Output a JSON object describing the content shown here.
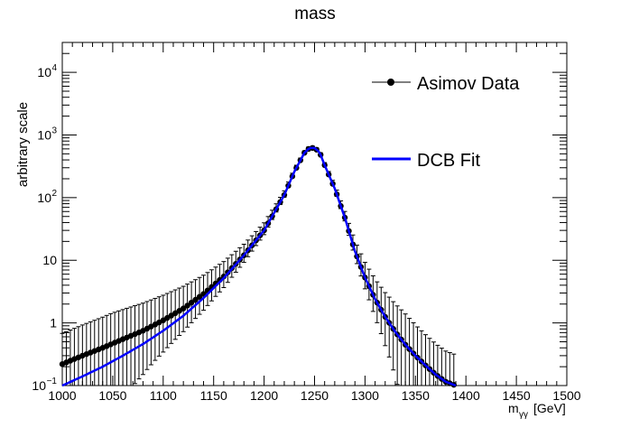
{
  "chart_data": {
    "type": "scatter",
    "title": "mass",
    "xlabel": "m_γγ [GeV]",
    "xlabel_main": "m",
    "xlabel_sub": "γγ",
    "xlabel_unit": "[GeV]",
    "ylabel": "arbitrary scale",
    "xlim": [
      1000,
      1500
    ],
    "ylim": [
      0.1,
      30000
    ],
    "y_scale": "log",
    "grid": false,
    "legend_position": "top-right",
    "x_ticks": [
      1000,
      1050,
      1100,
      1150,
      1200,
      1250,
      1300,
      1350,
      1400,
      1450,
      1500
    ],
    "x_tick_labels": [
      "1000",
      "1050",
      "1100",
      "1150",
      "1200",
      "1250",
      "1300",
      "1350",
      "1400",
      "1450",
      "1500"
    ],
    "y_ticks": [
      {
        "value": 0.1,
        "base": "10",
        "exp": "−1"
      },
      {
        "value": 1,
        "base": "1",
        "exp": ""
      },
      {
        "value": 10,
        "base": "10",
        "exp": ""
      },
      {
        "value": 100,
        "base": "10",
        "exp": "2"
      },
      {
        "value": 1000,
        "base": "10",
        "exp": "3"
      },
      {
        "value": 10000,
        "base": "10",
        "exp": "4"
      }
    ],
    "series": [
      {
        "name": "Asimov Data",
        "kind": "points_with_errors",
        "color": "#000000",
        "x": [
          1000,
          1020,
          1040,
          1060,
          1080,
          1100,
          1120,
          1140,
          1160,
          1180,
          1200,
          1220,
          1230,
          1240,
          1245,
          1250,
          1255,
          1260,
          1270,
          1280,
          1290,
          1300,
          1310,
          1320,
          1330,
          1340,
          1350,
          1360,
          1370,
          1380,
          1390
        ],
        "y": [
          0.22,
          0.3,
          0.4,
          0.55,
          0.75,
          1.1,
          1.7,
          2.9,
          5.5,
          12,
          30,
          110,
          260,
          520,
          620,
          620,
          530,
          330,
          140,
          48,
          14,
          5.3,
          2.4,
          1.25,
          0.72,
          0.45,
          0.3,
          0.21,
          0.15,
          0.115,
          0.1
        ]
      },
      {
        "name": "DCB Fit",
        "kind": "line",
        "color": "#0000ff",
        "x": [
          1000,
          1020,
          1040,
          1060,
          1080,
          1100,
          1120,
          1140,
          1160,
          1180,
          1200,
          1220,
          1230,
          1240,
          1245,
          1250,
          1255,
          1260,
          1270,
          1280,
          1290,
          1300,
          1310,
          1320,
          1330,
          1340,
          1350,
          1360,
          1370,
          1380,
          1390
        ],
        "y": [
          0.1,
          0.14,
          0.2,
          0.3,
          0.46,
          0.75,
          1.3,
          2.5,
          5.2,
          12,
          30,
          110,
          260,
          520,
          620,
          620,
          530,
          330,
          140,
          48,
          14,
          5.3,
          2.4,
          1.25,
          0.72,
          0.45,
          0.3,
          0.21,
          0.15,
          0.115,
          0.1
        ]
      }
    ]
  }
}
